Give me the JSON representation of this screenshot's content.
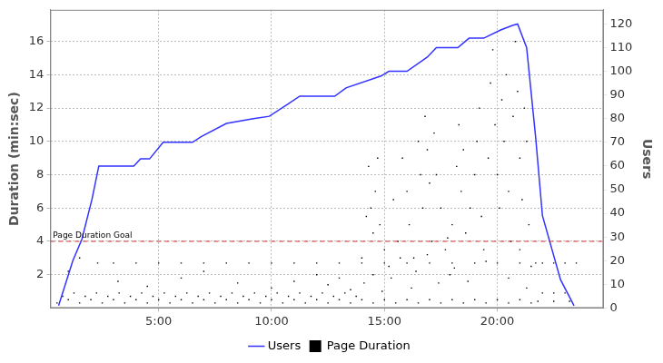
{
  "chart_data": {
    "type": "scatter",
    "y_label": "Duration (min:sec)",
    "y2_label": "Users",
    "xlim": [
      0.2,
      24.7
    ],
    "xticks": [
      {
        "value": 5,
        "label": "5:00"
      },
      {
        "value": 10,
        "label": "10:00"
      },
      {
        "value": 15,
        "label": "15:00"
      },
      {
        "value": 20,
        "label": "20:00"
      }
    ],
    "ylim": [
      0,
      17.9
    ],
    "yticks": [
      2,
      4,
      6,
      8,
      10,
      12,
      14,
      16
    ],
    "y2lim": [
      0,
      126
    ],
    "y2ticks": [
      0,
      10,
      20,
      30,
      40,
      50,
      60,
      70,
      80,
      90,
      100,
      110,
      120
    ],
    "grid": true,
    "legend": "bottom",
    "annotations": [
      {
        "text": "Page Duration Goal",
        "y": 4,
        "color": "#cc3333",
        "line_style": "dashed"
      }
    ],
    "series": [
      {
        "name": "Page Duration",
        "type": "scatter",
        "color": "#000000",
        "marker": "square",
        "x": [
          0.5,
          1,
          1.5,
          2,
          2.5,
          3,
          3.5,
          4,
          4.5,
          5,
          5.5,
          6,
          6.5,
          7,
          7.5,
          8,
          8.5,
          9,
          9.5,
          10,
          10.5,
          11,
          11.5,
          12,
          12.5,
          13,
          13.5,
          14,
          14.5,
          15,
          15.5,
          16,
          16.5,
          17,
          17.5,
          18,
          18.5,
          19,
          19.5,
          20,
          20.5,
          21,
          21.5,
          0.75,
          1.25,
          1.75,
          2.25,
          2.75,
          3.25,
          3.75,
          4.25,
          4.75,
          5.25,
          5.75,
          6.25,
          6.75,
          7.25,
          7.75,
          8.25,
          8.75,
          9.25,
          9.75,
          10.25,
          10.75,
          11.25,
          11.75,
          12.25,
          12.75,
          13.25,
          13.75,
          2.3,
          3,
          4,
          5,
          6,
          7,
          8,
          9,
          10,
          11,
          12,
          13,
          14,
          15,
          16,
          17,
          18,
          19,
          20,
          21,
          14.0,
          14.2,
          14.3,
          14.4,
          14.5,
          14.6,
          14.7,
          14.8,
          15.0,
          15.2,
          15.4,
          15.6,
          15.8,
          16.0,
          16.1,
          16.3,
          16.5,
          16.6,
          16.7,
          16.8,
          16.9,
          17.0,
          17.1,
          17.2,
          17.3,
          17.5,
          17.7,
          17.9,
          18.0,
          18.2,
          18.3,
          18.4,
          18.5,
          18.6,
          18.8,
          19.0,
          19.1,
          19.2,
          19.3,
          19.4,
          19.6,
          19.7,
          19.8,
          19.9,
          20.0,
          20.1,
          20.2,
          20.3,
          20.4,
          20.5,
          20.6,
          20.7,
          20.8,
          20.9,
          21.0,
          21.1,
          21.2,
          21.3,
          21.4,
          21.5,
          14.1,
          14.5,
          14.9,
          15.3,
          15.7,
          16.2,
          16.4,
          16.9,
          17.4,
          17.8,
          18.1,
          18.7,
          19.5,
          20.5,
          21.0,
          21.3,
          1.0,
          1.5,
          3.2,
          4.5,
          6.0,
          7.0,
          8.5,
          10.0,
          11.0,
          12.0,
          12.5,
          13.0,
          13.5,
          21.7,
          22.0,
          22.5,
          23.0,
          23.5,
          22.0,
          22.5,
          23.0,
          21.8,
          22.5,
          23.2
        ],
        "values": [
          0.3,
          0.5,
          0.3,
          0.5,
          0.3,
          0.5,
          0.3,
          0.5,
          0.3,
          0.5,
          0.3,
          0.5,
          0.3,
          0.5,
          0.3,
          0.5,
          0.3,
          0.5,
          0.3,
          0.5,
          0.3,
          0.5,
          0.3,
          0.5,
          0.3,
          0.5,
          0.3,
          0.5,
          0.3,
          0.5,
          0.3,
          0.5,
          0.3,
          0.5,
          0.3,
          0.5,
          0.3,
          0.5,
          0.3,
          0.5,
          0.3,
          0.5,
          0.3,
          0.7,
          0.9,
          0.7,
          0.9,
          0.7,
          0.9,
          0.7,
          0.9,
          0.7,
          0.9,
          0.7,
          0.9,
          0.7,
          0.9,
          0.7,
          0.9,
          0.7,
          0.9,
          0.7,
          0.9,
          0.7,
          0.9,
          0.7,
          0.9,
          0.7,
          0.9,
          0.7,
          2.7,
          2.7,
          2.7,
          2.7,
          2.7,
          2.7,
          2.7,
          2.7,
          2.7,
          2.7,
          2.7,
          2.7,
          2.7,
          2.7,
          2.7,
          2.7,
          2.7,
          2.7,
          2.7,
          2.7,
          3,
          5.5,
          8.5,
          6,
          4.5,
          7,
          9,
          5,
          3.5,
          2.5,
          6.5,
          4,
          9,
          7,
          5,
          3,
          10,
          8,
          6,
          11.5,
          9.5,
          7.5,
          4,
          10.5,
          8,
          6,
          3.5,
          2,
          5,
          8.5,
          11,
          7,
          9.5,
          4.5,
          6,
          8,
          10,
          12,
          5.5,
          3.5,
          9,
          13.5,
          15.5,
          11,
          8,
          6,
          12.5,
          10,
          14,
          7,
          4,
          11.5,
          16,
          13,
          9,
          6.5,
          12,
          10,
          5,
          2.5,
          1.5,
          2,
          1,
          1.8,
          3,
          1.2,
          2.2,
          3.2,
          1.5,
          4.2,
          2.4,
          1.6,
          2.8,
          1.8,
          3.5,
          1.2,
          2.2,
          3.0,
          1.6,
          1.3,
          1.8,
          2.2,
          1.5,
          1.2,
          1.6,
          2.0,
          1.4,
          1.8,
          1.1,
          2.7,
          2.7,
          2.7,
          2.7,
          2.7,
          0.9,
          0.9,
          0.9,
          0.4,
          0.4,
          0.4
        ]
      },
      {
        "name": "Users",
        "type": "line",
        "color": "#3333ff",
        "axis": "y2",
        "x": [
          0.57,
          1.2,
          1.6,
          2.05,
          2.35,
          3.9,
          4.2,
          4.6,
          5.2,
          6.5,
          6.9,
          8.0,
          9.2,
          9.9,
          10.7,
          11.25,
          12.8,
          13.3,
          14.85,
          15.2,
          16.0,
          16.9,
          17.3,
          18.25,
          18.75,
          19.4,
          20.15,
          20.7,
          20.9,
          21.3,
          21.7,
          22.0,
          22.8,
          23.4
        ],
        "values": [
          1,
          20,
          29,
          46,
          60,
          60,
          63,
          63,
          70,
          70,
          72.5,
          78,
          80,
          81,
          86,
          89.5,
          89.5,
          93,
          98,
          100,
          100,
          106,
          110,
          110,
          114,
          114,
          117.5,
          119.5,
          120,
          110,
          72,
          39,
          12,
          1
        ]
      }
    ]
  }
}
